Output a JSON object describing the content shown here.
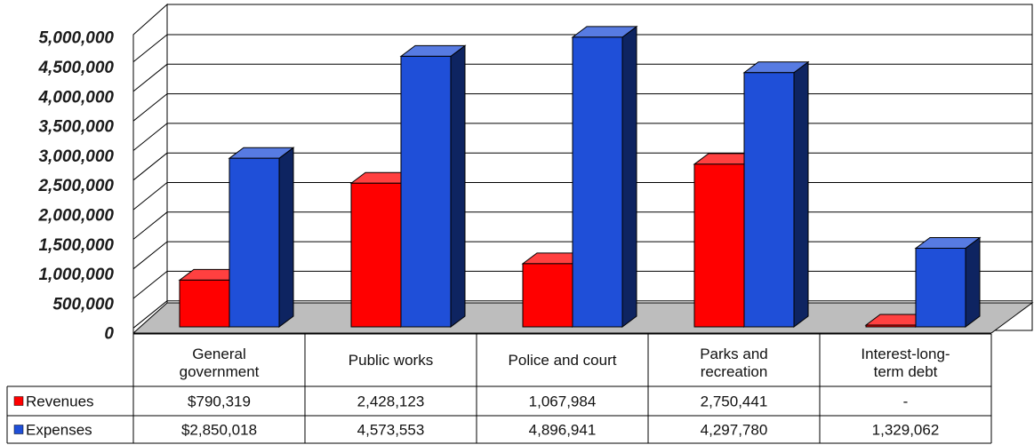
{
  "chart_data": {
    "type": "bar",
    "style": "3d-clustered-column-with-data-table",
    "categories": [
      [
        "General",
        "government"
      ],
      [
        "Public works"
      ],
      [
        "Police and court"
      ],
      [
        "Parks and",
        "recreation"
      ],
      [
        "Interest-long-",
        "term debt"
      ]
    ],
    "series": [
      {
        "name": "Revenues",
        "color": "#ff0000",
        "values": [
          790319,
          2428123,
          1067984,
          2750441,
          0
        ],
        "table_values": [
          "$790,319",
          "2,428,123",
          "1,067,984",
          "2,750,441",
          "-"
        ]
      },
      {
        "name": "Expenses",
        "color": "#1f4fd8",
        "values": [
          2850018,
          4573553,
          4896941,
          4297780,
          1329062
        ],
        "table_values": [
          "$2,850,018",
          "4,573,553",
          "4,896,941",
          "4,297,780",
          "1,329,062"
        ]
      }
    ],
    "yticks": [
      "5,000,000",
      "4,500,000",
      "4,000,000",
      "3,500,000",
      "3,000,000",
      "2,500,000",
      "2,000,000",
      "1,500,000",
      "1,000,000",
      "500,000",
      "0"
    ],
    "ylim": [
      0,
      5000000
    ],
    "grid": true,
    "legend": "in data table"
  }
}
